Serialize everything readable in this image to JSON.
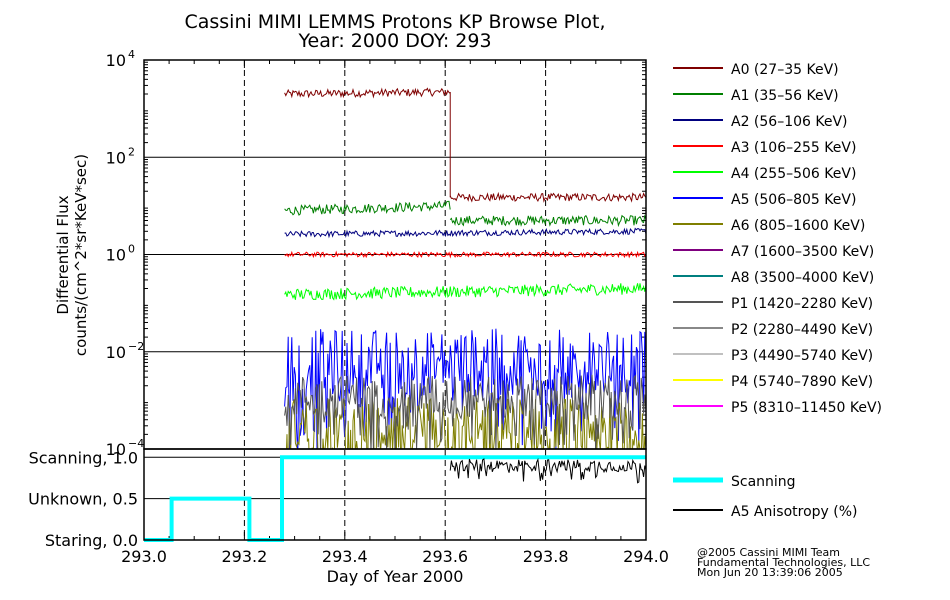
{
  "chart_data": {
    "type": "line",
    "title_line1": "Cassini MIMI LEMMS Protons KP Browse Plot,",
    "title_line2": "Year: 2000 DOY: 293",
    "xlabel": "Day of Year 2000",
    "xlim": [
      293.0,
      294.0
    ],
    "x_ticks": [
      "293.0",
      "293.2",
      "293.4",
      "293.6",
      "293.8",
      "294.0"
    ],
    "x_tick_values": [
      293.0,
      293.2,
      293.4,
      293.6,
      293.8,
      294.0
    ],
    "vertical_dashed_lines": [
      293.2,
      293.4,
      293.6,
      293.8
    ],
    "grid": true,
    "legend_position": "right",
    "top_panel": {
      "ylabel_line1": "Differential Flux",
      "ylabel_line2": "counts/(cm^2*sr*KeV*sec)",
      "yscale": "log",
      "ylim": [
        0.0001,
        10000
      ],
      "y_ticks": [
        {
          "value": 10000,
          "base": "10",
          "exp": "4"
        },
        {
          "value": 100,
          "base": "10",
          "exp": "2"
        },
        {
          "value": 1,
          "base": "10",
          "exp": "0"
        },
        {
          "value": 0.01,
          "base": "10",
          "exp": "−2"
        },
        {
          "value": 0.0001,
          "base": "10",
          "exp": "−4"
        }
      ],
      "series": [
        {
          "name": "A0 (27–35 KeV)",
          "color": "#7f0000",
          "segments": [
            {
              "x": [
                293.28,
                293.61
              ],
              "y": [
                2000,
                2200
              ]
            },
            {
              "x": [
                293.61,
                294.0
              ],
              "y": [
                15,
                15
              ]
            }
          ]
        },
        {
          "name": "A1 (35–56 KeV)",
          "color": "#007f00",
          "segments": [
            {
              "x": [
                293.28,
                293.61
              ],
              "y": [
                8,
                10
              ]
            },
            {
              "x": [
                293.61,
                294.0
              ],
              "y": [
                5,
                5
              ]
            }
          ]
        },
        {
          "name": "A2 (56–106 KeV)",
          "color": "#00007f",
          "segments": [
            {
              "x": [
                293.28,
                294.0
              ],
              "y": [
                2.6,
                3.0
              ]
            }
          ]
        },
        {
          "name": "A3 (106–255 KeV)",
          "color": "#ff0000",
          "segments": [
            {
              "x": [
                293.28,
                294.0
              ],
              "y": [
                1.0,
                1.0
              ]
            }
          ]
        },
        {
          "name": "A4 (255–506 KeV)",
          "color": "#00ff00",
          "segments": [
            {
              "x": [
                293.28,
                294.0
              ],
              "y": [
                0.15,
                0.2
              ]
            }
          ]
        },
        {
          "name": "A5 (506–805 KeV)",
          "color": "#0000ff",
          "segments": [
            {
              "x": [
                293.28,
                294.0
              ],
              "y": [
                0.006,
                0.006
              ]
            }
          ]
        },
        {
          "name": "A6 (805–1600 KeV)",
          "color": "#7f7f00",
          "segments": [
            {
              "x": [
                293.28,
                294.0
              ],
              "y": [
                0.0003,
                0.0003
              ]
            }
          ]
        },
        {
          "name": "A7 (1600–3500 KeV)",
          "color": "#7f007f",
          "segments": []
        },
        {
          "name": "A8 (3500–4000 KeV)",
          "color": "#007f7f",
          "segments": []
        },
        {
          "name": "P1 (1420–2280 KeV)",
          "color": "#555555",
          "segments": [
            {
              "x": [
                293.28,
                294.0
              ],
              "y": [
                0.0012,
                0.0012
              ]
            }
          ]
        },
        {
          "name": "P2 (2280–4490 KeV)",
          "color": "#888888",
          "segments": []
        },
        {
          "name": "P3 (4490–5740 KeV)",
          "color": "#c0c0c0",
          "segments": []
        },
        {
          "name": "P4 (5740–7890 KeV)",
          "color": "#ffff00",
          "segments": []
        },
        {
          "name": "P5 (8310–11450 KeV)",
          "color": "#ff00ff",
          "segments": []
        }
      ]
    },
    "bottom_panel": {
      "ylim": [
        0,
        1.1
      ],
      "y_ticks": [
        {
          "value": 1.0,
          "label": "Scanning, 1.0"
        },
        {
          "value": 0.5,
          "label": "Unknown, 0.5"
        },
        {
          "value": 0.0,
          "label": "Staring, 0.0"
        }
      ],
      "series": [
        {
          "name": "Scanning",
          "color": "#00ffff",
          "x": [
            293.0,
            293.055,
            293.055,
            293.21,
            293.21,
            293.275,
            293.275,
            294.0
          ],
          "y": [
            0,
            0,
            0.5,
            0.5,
            0,
            0,
            1.0,
            1.0
          ]
        },
        {
          "name": "A5 Anisotropy (%)",
          "color": "#000000",
          "x": [
            293.61,
            294.0
          ],
          "y": [
            0.9,
            0.9
          ]
        }
      ]
    },
    "footer_line1": "@2005 Cassini MIMI Team",
    "footer_line2": "Fundamental Technologies, LLC",
    "footer_line3": "Mon Jun 20 13:39:06 2005"
  }
}
